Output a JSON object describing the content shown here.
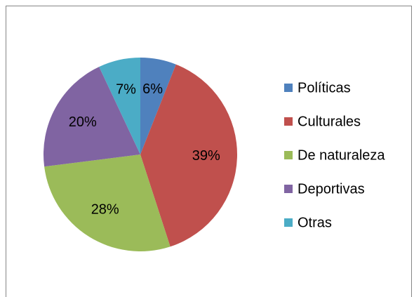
{
  "chart_data": {
    "type": "pie",
    "categories": [
      "Políticas",
      "Culturales",
      "De naturaleza",
      "Deportivas",
      "Otras"
    ],
    "values": [
      6,
      39,
      28,
      20,
      7
    ],
    "value_labels": [
      "6%",
      "39%",
      "28%",
      "20%",
      "7%"
    ],
    "colors": [
      "#4f81bd",
      "#c0504d",
      "#9bbb59",
      "#8064a2",
      "#4bacc6"
    ],
    "legend": "right"
  }
}
